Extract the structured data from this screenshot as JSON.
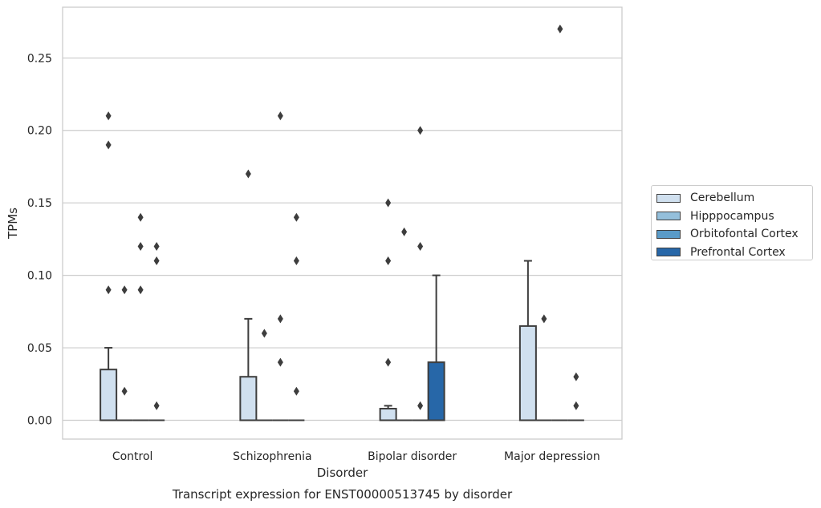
{
  "chart_data": {
    "type": "box",
    "caption": "Transcript expression for ENST00000513745 by disorder",
    "xlabel": "Disorder",
    "ylabel": "TPMs",
    "ylim": [
      -0.013,
      0.285
    ],
    "yticks": [
      "0.00",
      "0.05",
      "0.10",
      "0.15",
      "0.20",
      "0.25"
    ],
    "ytick_values": [
      0,
      0.05,
      0.1,
      0.15,
      0.2,
      0.25
    ],
    "grid": true,
    "legend_position": "right",
    "categories": [
      "Control",
      "Schizophrenia",
      "Bipolar disorder",
      "Major depression"
    ],
    "series": [
      {
        "name": "Cerebellum",
        "color": "#d0e0ef",
        "boxes": [
          {
            "q1": 0,
            "median": 0,
            "q3": 0.035,
            "whisker_low": 0,
            "whisker_high": 0.05,
            "outliers": [
              0.09,
              0.19,
              0.21
            ]
          },
          {
            "q1": 0,
            "median": 0,
            "q3": 0.03,
            "whisker_low": 0,
            "whisker_high": 0.07,
            "outliers": [
              0.17
            ]
          },
          {
            "q1": 0,
            "median": 0,
            "q3": 0.008,
            "whisker_low": 0,
            "whisker_high": 0.01,
            "outliers": [
              0.04,
              0.11,
              0.15
            ]
          },
          {
            "q1": 0,
            "median": 0,
            "q3": 0.065,
            "whisker_low": 0,
            "whisker_high": 0.11,
            "outliers": []
          }
        ]
      },
      {
        "name": "Hipppocampus",
        "color": "#94bfdb",
        "boxes": [
          {
            "q1": 0,
            "median": 0,
            "q3": 0,
            "whisker_low": 0,
            "whisker_high": 0,
            "outliers": [
              0.02,
              0.09
            ]
          },
          {
            "q1": 0,
            "median": 0,
            "q3": 0,
            "whisker_low": 0,
            "whisker_high": 0,
            "outliers": [
              0.06
            ]
          },
          {
            "q1": 0,
            "median": 0,
            "q3": 0,
            "whisker_low": 0,
            "whisker_high": 0,
            "outliers": [
              0.13
            ]
          },
          {
            "q1": 0,
            "median": 0,
            "q3": 0,
            "whisker_low": 0,
            "whisker_high": 0,
            "outliers": [
              0.07
            ]
          }
        ]
      },
      {
        "name": "Orbitofontal Cortex",
        "color": "#5a9bc8",
        "boxes": [
          {
            "q1": 0,
            "median": 0,
            "q3": 0,
            "whisker_low": 0,
            "whisker_high": 0,
            "outliers": [
              0.09,
              0.12,
              0.14
            ]
          },
          {
            "q1": 0,
            "median": 0,
            "q3": 0,
            "whisker_low": 0,
            "whisker_high": 0,
            "outliers": [
              0.04,
              0.07,
              0.21
            ]
          },
          {
            "q1": 0,
            "median": 0,
            "q3": 0,
            "whisker_low": 0,
            "whisker_high": 0,
            "outliers": [
              0.01,
              0.12,
              0.2
            ]
          },
          {
            "q1": 0,
            "median": 0,
            "q3": 0,
            "whisker_low": 0,
            "whisker_high": 0,
            "outliers": [
              0.27
            ]
          }
        ]
      },
      {
        "name": "Prefrontal Cortex",
        "color": "#2767a8",
        "boxes": [
          {
            "q1": 0,
            "median": 0,
            "q3": 0,
            "whisker_low": 0,
            "whisker_high": 0,
            "outliers": [
              0.01,
              0.11,
              0.12
            ]
          },
          {
            "q1": 0,
            "median": 0,
            "q3": 0,
            "whisker_low": 0,
            "whisker_high": 0,
            "outliers": [
              0.02,
              0.11,
              0.14
            ]
          },
          {
            "q1": 0,
            "median": 0,
            "q3": 0.04,
            "whisker_low": 0,
            "whisker_high": 0.1,
            "outliers": []
          },
          {
            "q1": 0,
            "median": 0,
            "q3": 0,
            "whisker_low": 0,
            "whisker_high": 0,
            "outliers": [
              0.01,
              0.03
            ]
          }
        ]
      }
    ]
  }
}
